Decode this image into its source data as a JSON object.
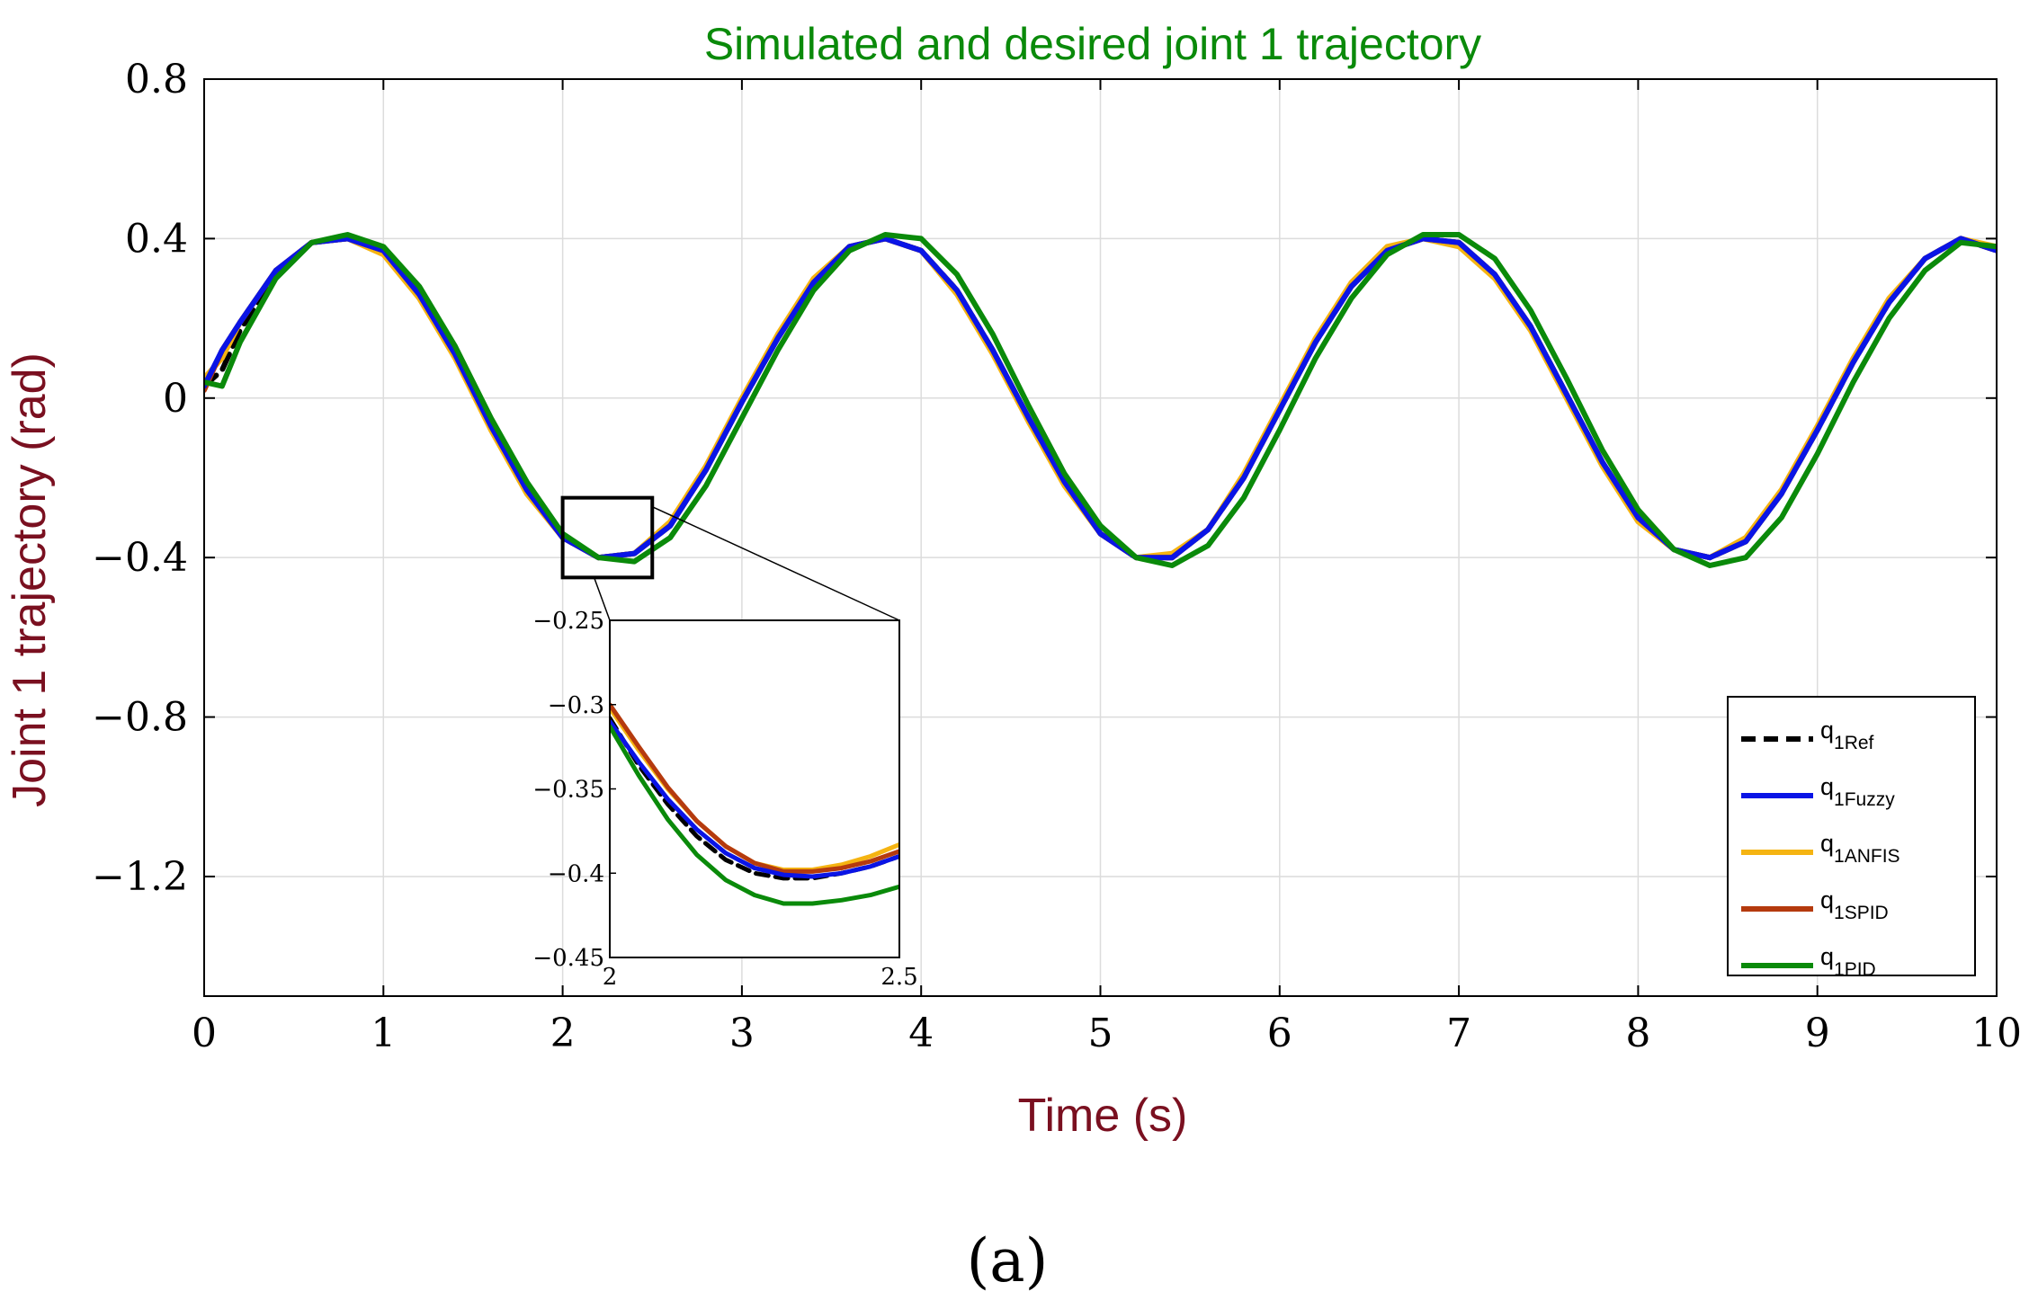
{
  "chart_data": {
    "type": "line",
    "title": "Simulated and desired joint 1 trajectory",
    "title_color": "#0a8a0a",
    "xlabel": "Time (s)",
    "ylabel": "Joint 1 trajectory (rad)",
    "axis_label_color": "#7a1020",
    "xlim": [
      0,
      10
    ],
    "ylim": [
      -1.5,
      0.8
    ],
    "xticks": [
      0,
      1,
      2,
      3,
      4,
      5,
      6,
      7,
      8,
      9,
      10
    ],
    "xtick_labels": [
      "0",
      "1",
      "2",
      "3",
      "4",
      "5",
      "6",
      "7",
      "8",
      "9",
      "10"
    ],
    "yticks": [
      0.8,
      0.4,
      0,
      -0.4,
      -0.8,
      -1.2
    ],
    "ytick_labels": [
      "0.8",
      "0.4",
      "0",
      "−0.4",
      "−0.8",
      "−1.2"
    ],
    "grid": true,
    "legend_position": "bottom-right",
    "x": [
      0,
      0.1,
      0.2,
      0.4,
      0.6,
      0.8,
      1.0,
      1.2,
      1.4,
      1.6,
      1.8,
      2.0,
      2.2,
      2.4,
      2.6,
      2.8,
      3.0,
      3.2,
      3.4,
      3.6,
      3.8,
      4.0,
      4.2,
      4.4,
      4.6,
      4.8,
      5.0,
      5.2,
      5.4,
      5.6,
      5.8,
      6.0,
      6.2,
      6.4,
      6.6,
      6.8,
      7.0,
      7.2,
      7.4,
      7.6,
      7.8,
      8.0,
      8.2,
      8.4,
      8.6,
      8.8,
      9.0,
      9.2,
      9.4,
      9.6,
      9.8,
      10.0
    ],
    "series": [
      {
        "name": "q1Ref",
        "color": "#000000",
        "dash": "dashed",
        "values": [
          0.03,
          0.07,
          0.17,
          0.31,
          0.39,
          0.4,
          0.37,
          0.26,
          0.11,
          -0.07,
          -0.23,
          -0.35,
          -0.4,
          -0.39,
          -0.32,
          -0.18,
          -0.01,
          0.15,
          0.29,
          0.38,
          0.4,
          0.37,
          0.27,
          0.12,
          -0.05,
          -0.21,
          -0.34,
          -0.4,
          -0.4,
          -0.33,
          -0.2,
          -0.03,
          0.14,
          0.28,
          0.37,
          0.4,
          0.39,
          0.31,
          0.18,
          0.01,
          -0.16,
          -0.3,
          -0.38,
          -0.4,
          -0.36,
          -0.24,
          -0.08,
          0.09,
          0.24,
          0.35,
          0.4,
          0.37
        ]
      },
      {
        "name": "q1Fuzzy",
        "color": "#0a14e6",
        "dash": "solid",
        "values": [
          0.03,
          0.12,
          0.19,
          0.32,
          0.39,
          0.4,
          0.37,
          0.26,
          0.11,
          -0.07,
          -0.23,
          -0.35,
          -0.4,
          -0.39,
          -0.32,
          -0.18,
          -0.01,
          0.15,
          0.29,
          0.38,
          0.4,
          0.37,
          0.27,
          0.12,
          -0.05,
          -0.21,
          -0.34,
          -0.4,
          -0.4,
          -0.33,
          -0.2,
          -0.03,
          0.14,
          0.28,
          0.37,
          0.4,
          0.39,
          0.31,
          0.18,
          0.01,
          -0.16,
          -0.3,
          -0.38,
          -0.4,
          -0.36,
          -0.24,
          -0.08,
          0.09,
          0.24,
          0.35,
          0.4,
          0.37
        ]
      },
      {
        "name": "q1ANFIS",
        "color": "#f5b412",
        "dash": "solid",
        "values": [
          0.05,
          0.1,
          0.19,
          0.32,
          0.39,
          0.4,
          0.36,
          0.25,
          0.1,
          -0.08,
          -0.24,
          -0.35,
          -0.4,
          -0.39,
          -0.31,
          -0.17,
          0.0,
          0.16,
          0.3,
          0.38,
          0.4,
          0.37,
          0.26,
          0.11,
          -0.06,
          -0.22,
          -0.34,
          -0.4,
          -0.39,
          -0.33,
          -0.19,
          -0.02,
          0.15,
          0.29,
          0.38,
          0.4,
          0.38,
          0.3,
          0.17,
          0.0,
          -0.17,
          -0.31,
          -0.38,
          -0.4,
          -0.35,
          -0.23,
          -0.07,
          0.1,
          0.25,
          0.35,
          0.4,
          0.38
        ]
      },
      {
        "name": "q1SPID",
        "color": "#b53a0e",
        "dash": "solid",
        "values": [
          0.02,
          0.12,
          0.19,
          0.32,
          0.39,
          0.4,
          0.37,
          0.26,
          0.11,
          -0.07,
          -0.23,
          -0.35,
          -0.4,
          -0.39,
          -0.32,
          -0.18,
          -0.01,
          0.15,
          0.29,
          0.38,
          0.4,
          0.37,
          0.27,
          0.12,
          -0.05,
          -0.21,
          -0.34,
          -0.4,
          -0.4,
          -0.33,
          -0.2,
          -0.03,
          0.14,
          0.28,
          0.37,
          0.4,
          0.39,
          0.31,
          0.18,
          0.01,
          -0.16,
          -0.3,
          -0.38,
          -0.4,
          -0.36,
          -0.24,
          -0.08,
          0.09,
          0.24,
          0.35,
          0.4,
          0.37
        ]
      },
      {
        "name": "q1PID",
        "color": "#0a8a0a",
        "dash": "solid",
        "values": [
          0.04,
          0.03,
          0.14,
          0.3,
          0.39,
          0.41,
          0.38,
          0.28,
          0.13,
          -0.05,
          -0.21,
          -0.34,
          -0.4,
          -0.41,
          -0.35,
          -0.22,
          -0.05,
          0.12,
          0.27,
          0.37,
          0.41,
          0.4,
          0.31,
          0.16,
          -0.02,
          -0.19,
          -0.32,
          -0.4,
          -0.42,
          -0.37,
          -0.25,
          -0.08,
          0.1,
          0.25,
          0.36,
          0.41,
          0.41,
          0.35,
          0.22,
          0.05,
          -0.13,
          -0.28,
          -0.38,
          -0.42,
          -0.4,
          -0.3,
          -0.14,
          0.04,
          0.2,
          0.32,
          0.39,
          0.38
        ]
      }
    ],
    "inset": {
      "xlim": [
        2,
        2.5
      ],
      "ylim": [
        -0.45,
        -0.25
      ],
      "xticks": [
        2,
        2.5
      ],
      "xtick_labels": [
        "2",
        "2.5"
      ],
      "yticks": [
        -0.25,
        -0.3,
        -0.35,
        -0.4,
        -0.45
      ],
      "ytick_labels": [
        "−0.25",
        "−0.3",
        "−0.35",
        "−0.4",
        "−0.45"
      ],
      "x": [
        2.0,
        2.05,
        2.1,
        2.15,
        2.2,
        2.25,
        2.3,
        2.35,
        2.4,
        2.45,
        2.5
      ],
      "series": [
        {
          "name": "q1Ref",
          "values": [
            -0.308,
            -0.336,
            -0.359,
            -0.378,
            -0.392,
            -0.4,
            -0.403,
            -0.403,
            -0.4,
            -0.396,
            -0.39
          ]
        },
        {
          "name": "q1Fuzzy",
          "values": [
            -0.31,
            -0.334,
            -0.356,
            -0.374,
            -0.388,
            -0.397,
            -0.401,
            -0.402,
            -0.4,
            -0.396,
            -0.39
          ]
        },
        {
          "name": "q1ANFIS",
          "values": [
            -0.302,
            -0.327,
            -0.35,
            -0.369,
            -0.384,
            -0.394,
            -0.398,
            -0.398,
            -0.395,
            -0.39,
            -0.383
          ]
        },
        {
          "name": "q1SPID",
          "values": [
            -0.3,
            -0.325,
            -0.349,
            -0.369,
            -0.384,
            -0.394,
            -0.399,
            -0.399,
            -0.397,
            -0.393,
            -0.387
          ]
        },
        {
          "name": "q1PID",
          "values": [
            -0.313,
            -0.342,
            -0.368,
            -0.389,
            -0.404,
            -0.413,
            -0.418,
            -0.418,
            -0.416,
            -0.413,
            -0.408
          ]
        }
      ]
    },
    "legend": [
      {
        "base": "q",
        "sub": "1Ref"
      },
      {
        "base": "q",
        "sub": "1Fuzzy"
      },
      {
        "base": "q",
        "sub": "1ANFIS"
      },
      {
        "base": "q",
        "sub": "1SPID"
      },
      {
        "base": "q",
        "sub": "1PID"
      }
    ]
  },
  "caption": "(a)"
}
